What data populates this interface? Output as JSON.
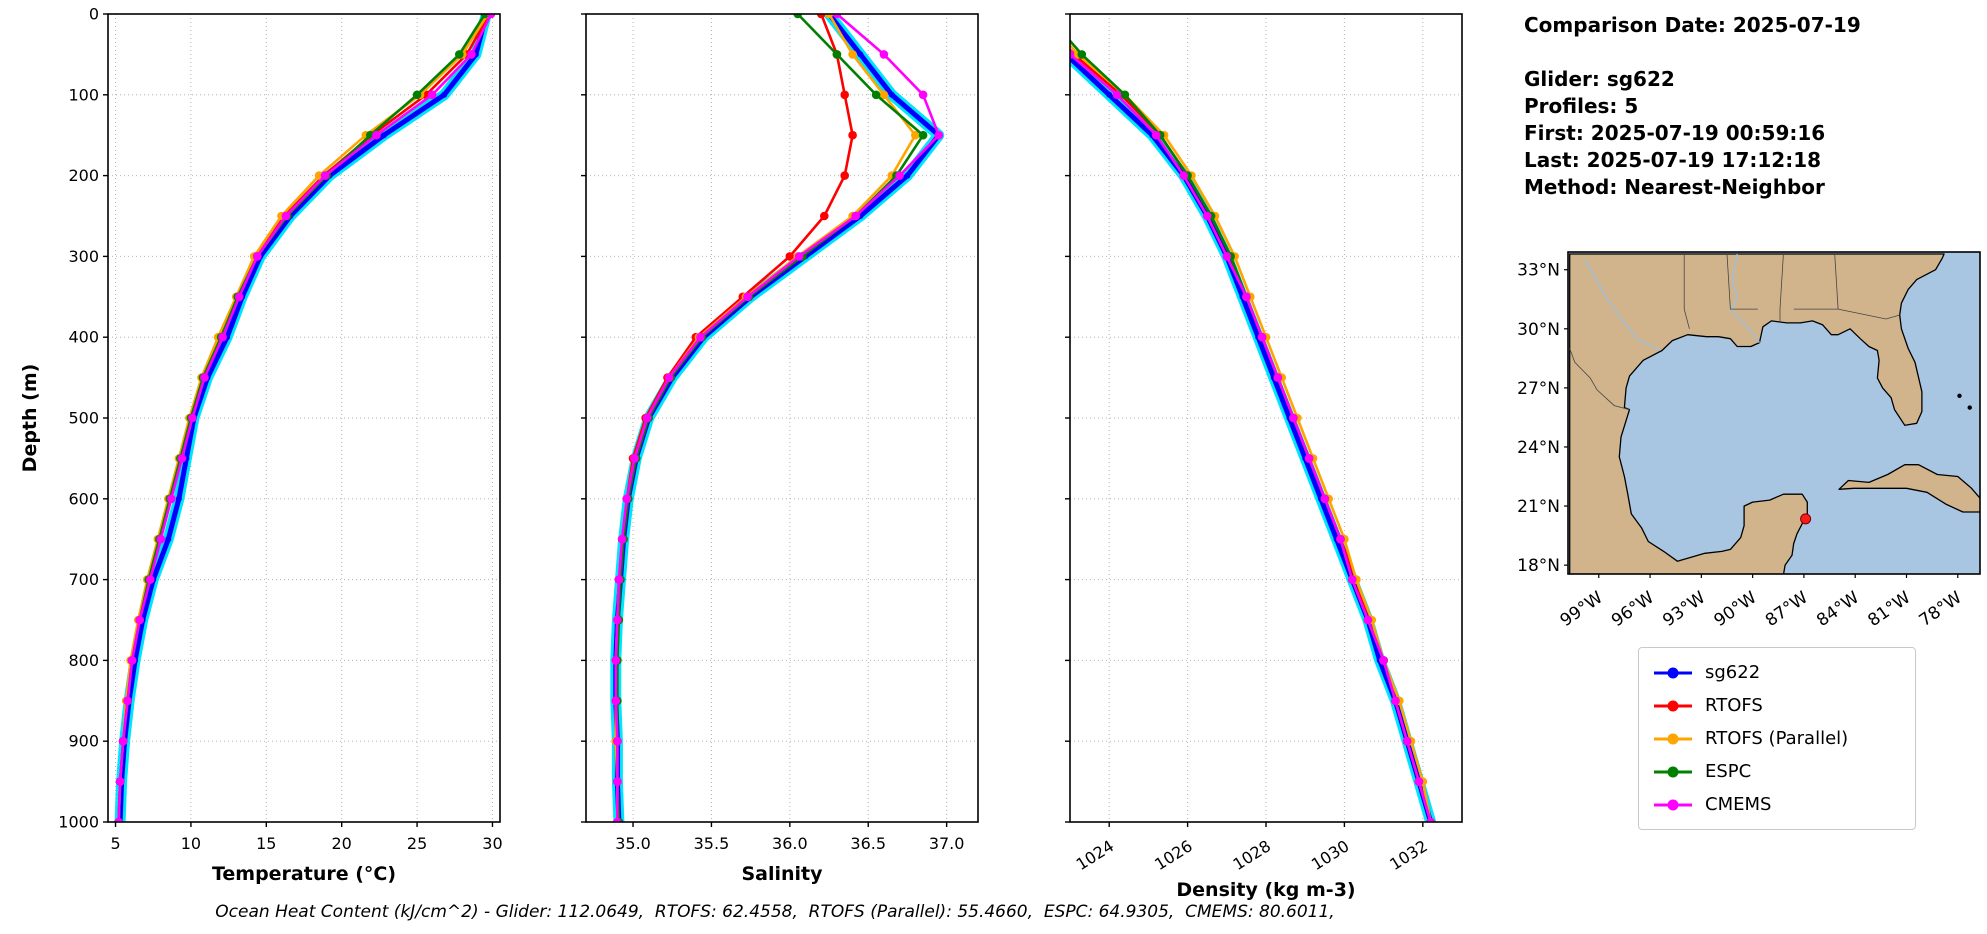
{
  "info_panel": {
    "comparison_date": "Comparison Date: 2025-07-19",
    "glider": "Glider: sg622",
    "profiles": "Profiles: 5",
    "first": "First: 2025-07-19 00:59:16",
    "last": "Last: 2025-07-19 17:12:18",
    "method": "Method: Nearest-Neighbor"
  },
  "footer": "Ocean Heat Content (kJ/cm^2) - Glider: 112.0649,  RTOFS: 62.4558,  RTOFS (Parallel): 55.4660,  ESPC: 64.9305,  CMEMS: 80.6011,",
  "legend": [
    {
      "label": "sg622",
      "color": "#0000ff"
    },
    {
      "label": "RTOFS",
      "color": "#ff0000"
    },
    {
      "label": "RTOFS (Parallel)",
      "color": "#ffa500"
    },
    {
      "label": "ESPC",
      "color": "#008000"
    },
    {
      "label": "CMEMS",
      "color": "#ff00ff"
    }
  ],
  "map": {
    "land_color": "#d2b48c",
    "water_color": "#a8c6e2",
    "lat_tick_values": [
      33,
      30,
      27,
      24,
      21,
      18
    ],
    "lat_tick_labels": [
      "33°N",
      "30°N",
      "27°N",
      "24°N",
      "21°N",
      "18°N"
    ],
    "lon_tick_values": [
      -99,
      -96,
      -93,
      -90,
      -87,
      -84,
      -81,
      -78
    ],
    "lon_tick_labels": [
      "99°W",
      "96°W",
      "93°W",
      "90°W",
      "87°W",
      "84°W",
      "81°W",
      "78°W"
    ],
    "marker": {
      "lon": -86.9,
      "lat": 20.35,
      "color": "#ff1a1a"
    }
  },
  "chart_data": [
    {
      "type": "line",
      "id": "temperature",
      "xlabel": "Temperature (°C)",
      "ylabel": "Depth (m)",
      "xlim": [
        4.5,
        30.5
      ],
      "ylim": [
        0,
        1000
      ],
      "grid": "dotted",
      "xticks": [
        5,
        10,
        15,
        20,
        25,
        30
      ],
      "xtick_labels": [
        "5",
        "10",
        "15",
        "20",
        "25",
        "30"
      ],
      "yticks": [
        0,
        100,
        200,
        300,
        400,
        500,
        600,
        700,
        800,
        900,
        1000
      ],
      "ytick_labels": [
        "0",
        "100",
        "200",
        "300",
        "400",
        "500",
        "600",
        "700",
        "800",
        "900",
        "1000"
      ],
      "depths": [
        0,
        50,
        100,
        150,
        200,
        250,
        300,
        350,
        400,
        450,
        500,
        550,
        600,
        650,
        700,
        750,
        800,
        850,
        900,
        950,
        1000
      ],
      "series": [
        {
          "name": "sg622",
          "color": "#0000ff",
          "glow": "#00e5ff",
          "values": [
            29.6,
            28.9,
            26.8,
            22.8,
            19.2,
            16.6,
            14.6,
            13.4,
            12.4,
            11.1,
            10.2,
            9.7,
            9.2,
            8.5,
            7.5,
            6.8,
            6.3,
            5.9,
            5.6,
            5.4,
            5.3
          ]
        },
        {
          "name": "RTOFS",
          "color": "#ff0000",
          "values": [
            29.8,
            28.3,
            25.6,
            22.0,
            18.8,
            16.2,
            14.3,
            13.1,
            11.9,
            10.8,
            10.0,
            9.3,
            8.6,
            7.9,
            7.2,
            6.6,
            6.1,
            5.8,
            5.5,
            5.3,
            5.2
          ]
        },
        {
          "name": "RTOFS (Parallel)",
          "color": "#ffa500",
          "values": [
            29.7,
            28.0,
            25.2,
            21.6,
            18.5,
            16.0,
            14.2,
            13.0,
            11.8,
            10.7,
            9.9,
            9.2,
            8.5,
            7.8,
            7.1,
            6.5,
            6.0,
            5.7,
            5.5,
            5.3,
            5.2
          ]
        },
        {
          "name": "ESPC",
          "color": "#008000",
          "values": [
            29.5,
            27.8,
            25.0,
            21.9,
            19.0,
            16.4,
            14.4,
            13.1,
            12.0,
            10.8,
            10.0,
            9.3,
            8.6,
            7.9,
            7.2,
            6.6,
            6.1,
            5.8,
            5.5,
            5.3,
            5.2
          ]
        },
        {
          "name": "CMEMS",
          "color": "#ff00ff",
          "values": [
            29.9,
            28.6,
            26.0,
            22.3,
            18.9,
            16.3,
            14.4,
            13.2,
            12.1,
            10.9,
            10.1,
            9.4,
            8.7,
            8.0,
            7.3,
            6.6,
            6.1,
            5.8,
            5.5,
            5.3,
            5.2
          ]
        }
      ]
    },
    {
      "type": "line",
      "id": "salinity",
      "xlabel": "Salinity",
      "ylabel": "",
      "xlim": [
        34.7,
        37.2
      ],
      "ylim": [
        0,
        1000
      ],
      "grid": "dotted",
      "xticks": [
        35.0,
        35.5,
        36.0,
        36.5,
        37.0
      ],
      "xtick_labels": [
        "35.0",
        "35.5",
        "36.0",
        "36.5",
        "37.0"
      ],
      "yticks": [
        0,
        100,
        200,
        300,
        400,
        500,
        600,
        700,
        800,
        900,
        1000
      ],
      "ytick_labels": [
        "0",
        "100",
        "200",
        "300",
        "400",
        "500",
        "600",
        "700",
        "800",
        "900",
        "1000"
      ],
      "depths": [
        0,
        50,
        100,
        150,
        200,
        250,
        300,
        350,
        400,
        450,
        500,
        550,
        600,
        650,
        700,
        750,
        800,
        850,
        900,
        950,
        1000
      ],
      "series": [
        {
          "name": "sg622",
          "color": "#0000ff",
          "glow": "#00e5ff",
          "values": [
            36.25,
            36.45,
            36.65,
            36.95,
            36.75,
            36.45,
            36.1,
            35.75,
            35.45,
            35.25,
            35.1,
            35.02,
            34.97,
            34.94,
            34.92,
            34.9,
            34.89,
            34.89,
            34.9,
            34.9,
            34.91
          ]
        },
        {
          "name": "RTOFS",
          "color": "#ff0000",
          "values": [
            36.2,
            36.3,
            36.35,
            36.4,
            36.35,
            36.22,
            36.0,
            35.7,
            35.4,
            35.22,
            35.08,
            35.0,
            34.96,
            34.93,
            34.91,
            34.9,
            34.89,
            34.89,
            34.89,
            34.9,
            34.9
          ]
        },
        {
          "name": "RTOFS (Parallel)",
          "color": "#ffa500",
          "values": [
            36.25,
            36.4,
            36.6,
            36.8,
            36.65,
            36.4,
            36.05,
            35.72,
            35.42,
            35.23,
            35.09,
            35.01,
            34.96,
            34.93,
            34.91,
            34.9,
            34.89,
            34.89,
            34.89,
            34.9,
            34.9
          ]
        },
        {
          "name": "ESPC",
          "color": "#008000",
          "values": [
            36.05,
            36.3,
            36.55,
            36.85,
            36.68,
            36.42,
            36.08,
            35.74,
            35.44,
            35.24,
            35.1,
            35.02,
            34.97,
            34.94,
            34.92,
            34.91,
            34.9,
            34.9,
            34.9,
            34.9,
            34.91
          ]
        },
        {
          "name": "CMEMS",
          "color": "#ff00ff",
          "values": [
            36.3,
            36.6,
            36.85,
            36.95,
            36.7,
            36.42,
            36.06,
            35.73,
            35.43,
            35.23,
            35.09,
            35.01,
            34.96,
            34.93,
            34.91,
            34.9,
            34.89,
            34.89,
            34.9,
            34.9,
            34.9
          ]
        }
      ]
    },
    {
      "type": "line",
      "id": "density",
      "xlabel": "Density (kg m-3)",
      "ylabel": "",
      "xlim": [
        1023.0,
        1033.0
      ],
      "ylim": [
        0,
        1000
      ],
      "grid": "dotted",
      "xticks": [
        1024,
        1026,
        1028,
        1030,
        1032
      ],
      "xtick_labels": [
        "1024",
        "1026",
        "1028",
        "1030",
        "1032"
      ],
      "yticks": [
        0,
        100,
        200,
        300,
        400,
        500,
        600,
        700,
        800,
        900,
        1000
      ],
      "ytick_labels": [
        "0",
        "100",
        "200",
        "300",
        "400",
        "500",
        "600",
        "700",
        "800",
        "900",
        "1000"
      ],
      "depths": [
        0,
        50,
        100,
        150,
        200,
        250,
        300,
        350,
        400,
        450,
        500,
        550,
        600,
        650,
        700,
        750,
        800,
        850,
        900,
        950,
        1000
      ],
      "series": [
        {
          "name": "sg622",
          "color": "#0000ff",
          "glow": "#00e5ff",
          "values": [
            1022.3,
            1022.9,
            1024.0,
            1025.1,
            1025.9,
            1026.5,
            1027.0,
            1027.4,
            1027.8,
            1028.2,
            1028.6,
            1029.0,
            1029.4,
            1029.8,
            1030.2,
            1030.6,
            1030.9,
            1031.3,
            1031.6,
            1031.9,
            1032.2
          ]
        },
        {
          "name": "RTOFS",
          "color": "#ff0000",
          "values": [
            1022.2,
            1023.1,
            1024.3,
            1025.3,
            1026.0,
            1026.6,
            1027.1,
            1027.5,
            1027.9,
            1028.3,
            1028.7,
            1029.1,
            1029.5,
            1029.9,
            1030.3,
            1030.6,
            1031.0,
            1031.3,
            1031.6,
            1031.9,
            1032.2
          ]
        },
        {
          "name": "RTOFS (Parallel)",
          "color": "#ffa500",
          "values": [
            1022.3,
            1023.2,
            1024.4,
            1025.4,
            1026.1,
            1026.7,
            1027.2,
            1027.6,
            1028.0,
            1028.4,
            1028.8,
            1029.2,
            1029.6,
            1030.0,
            1030.3,
            1030.7,
            1031.0,
            1031.4,
            1031.7,
            1032.0,
            1032.2
          ]
        },
        {
          "name": "ESPC",
          "color": "#008000",
          "values": [
            1022.4,
            1023.3,
            1024.4,
            1025.3,
            1026.0,
            1026.6,
            1027.1,
            1027.5,
            1027.9,
            1028.3,
            1028.7,
            1029.1,
            1029.5,
            1029.9,
            1030.2,
            1030.6,
            1031.0,
            1031.3,
            1031.6,
            1031.9,
            1032.2
          ]
        },
        {
          "name": "CMEMS",
          "color": "#ff00ff",
          "values": [
            1022.2,
            1023.0,
            1024.2,
            1025.2,
            1025.9,
            1026.5,
            1027.0,
            1027.5,
            1027.9,
            1028.3,
            1028.7,
            1029.1,
            1029.5,
            1029.9,
            1030.2,
            1030.6,
            1031.0,
            1031.3,
            1031.6,
            1031.9,
            1032.2
          ]
        }
      ]
    }
  ]
}
